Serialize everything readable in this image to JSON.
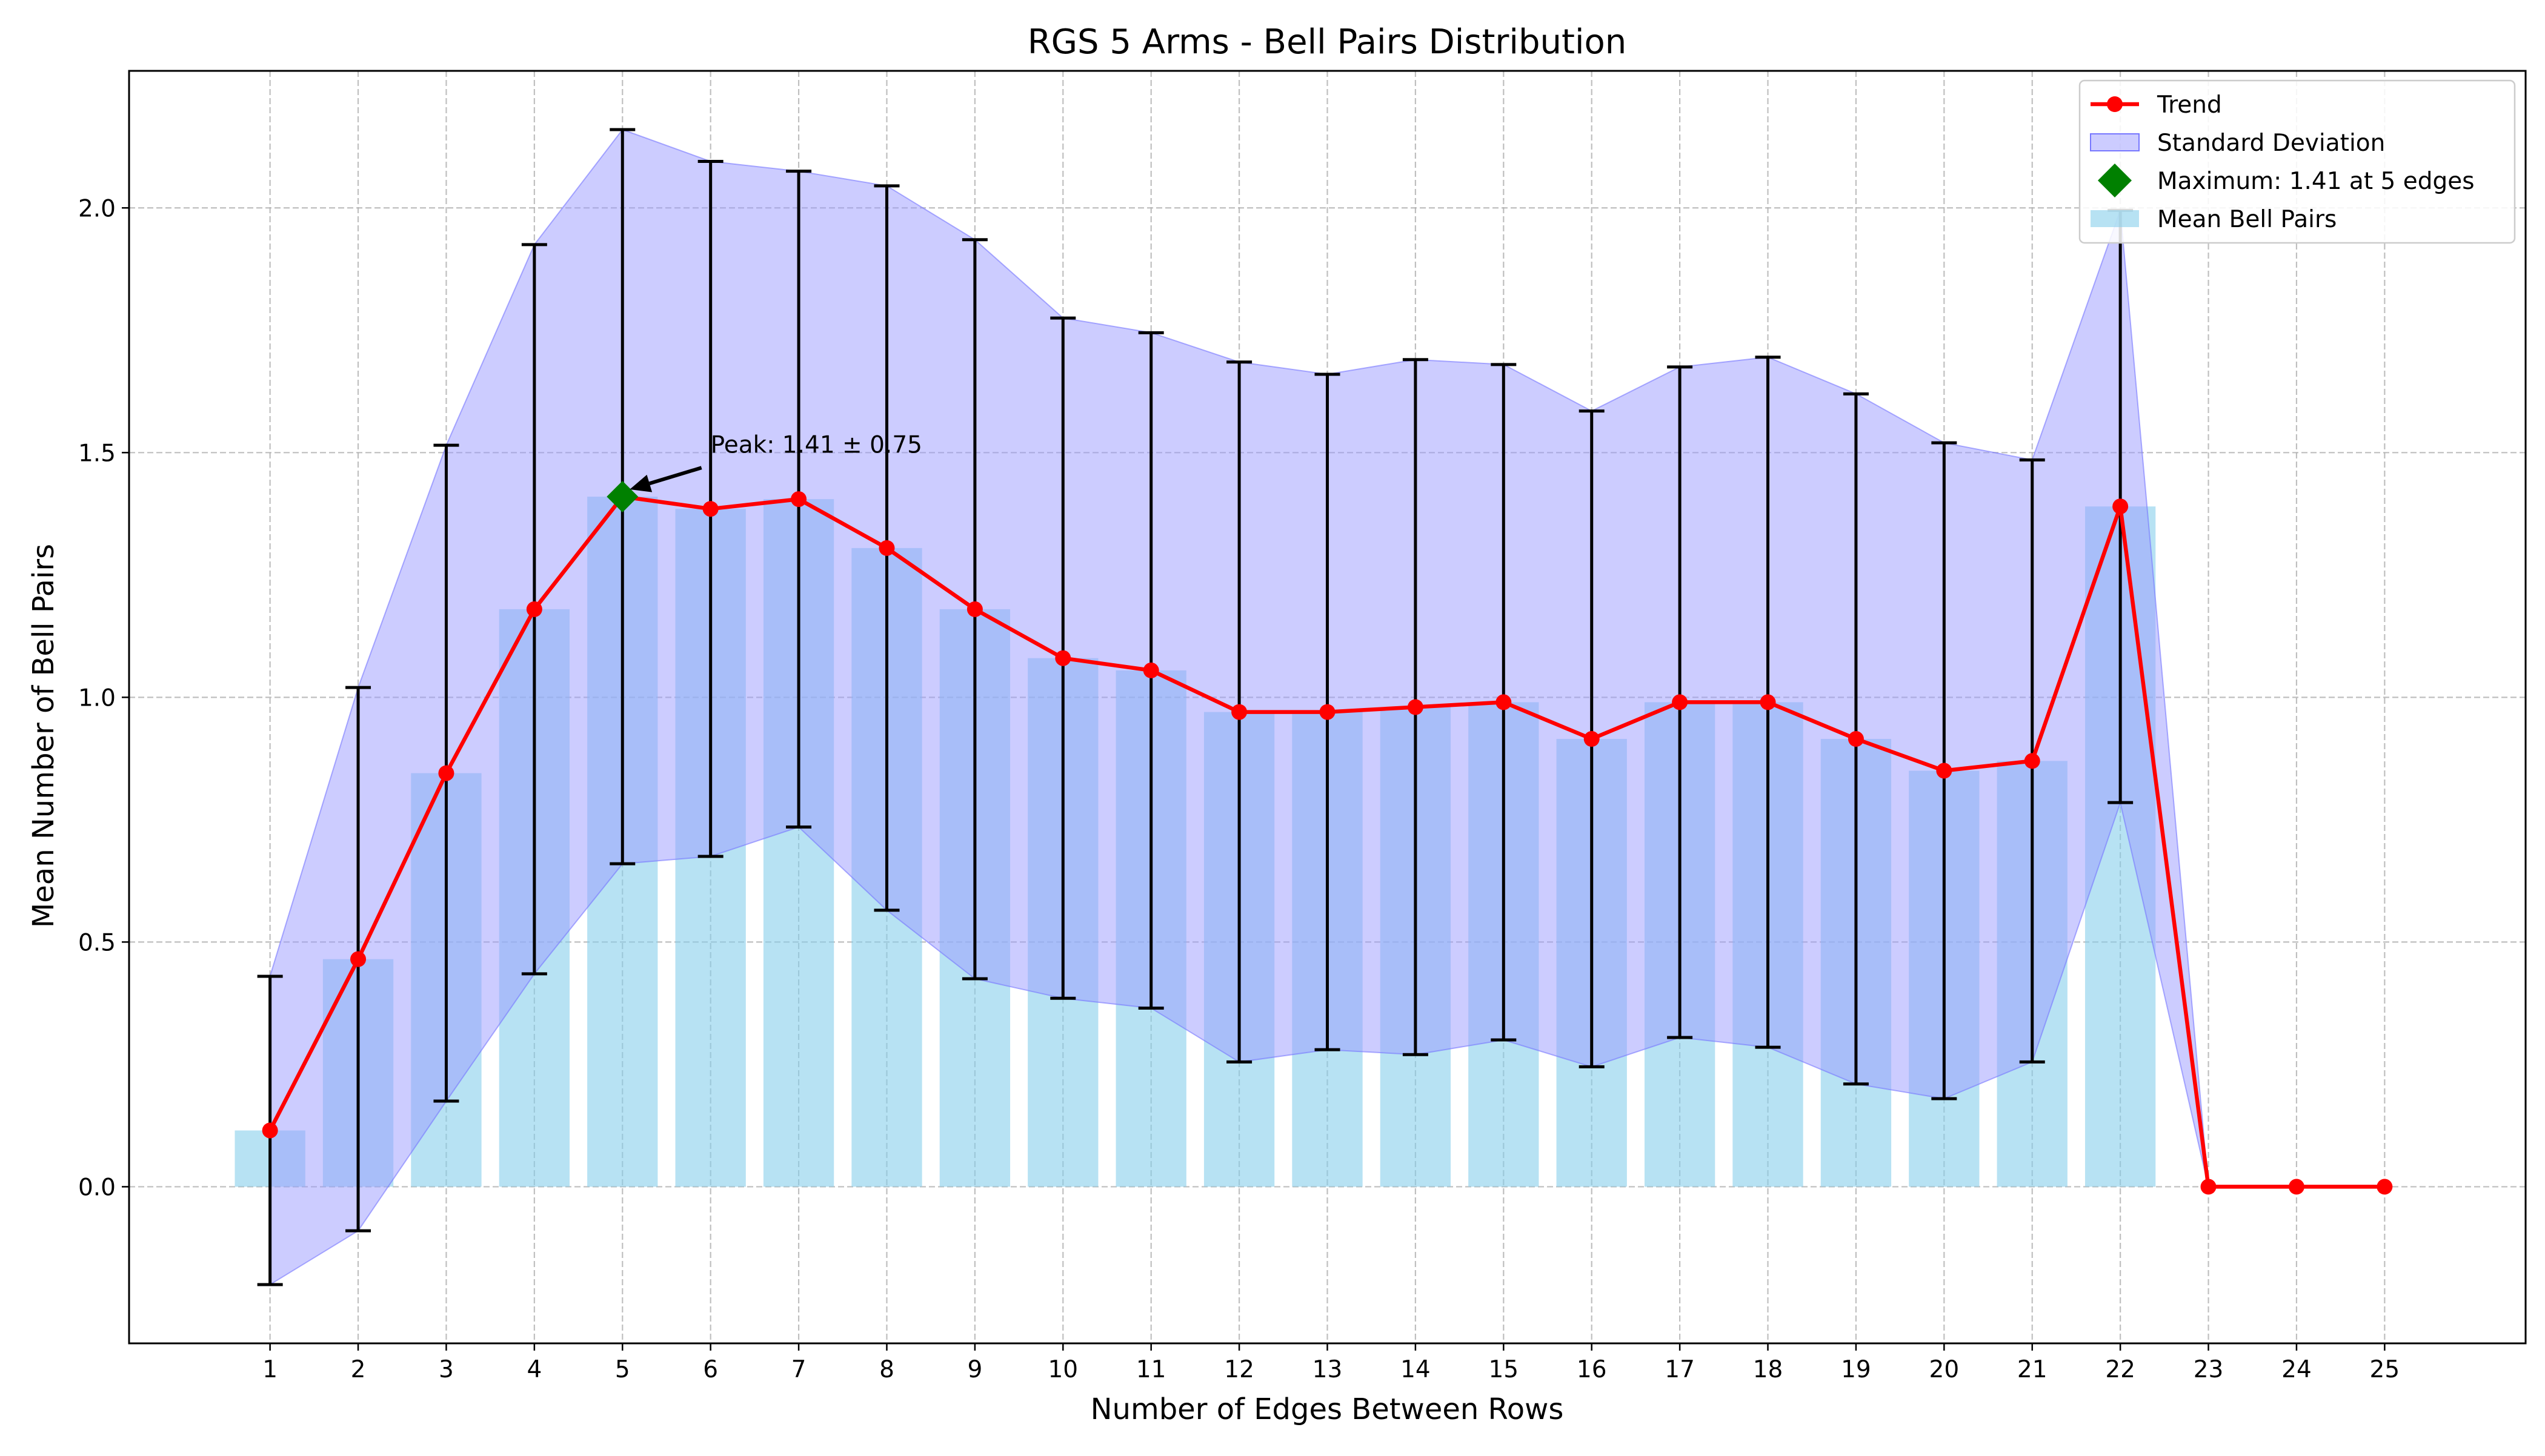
{
  "chart_data": {
    "type": "bar",
    "title": "RGS 5 Arms - Bell Pairs Distribution",
    "xlabel": "Number of Edges Between Rows",
    "ylabel": "Mean Number of Bell Pairs",
    "xlim": [
      -0.6,
      26.6
    ],
    "ylim": [
      -0.32,
      2.28
    ],
    "grid": true,
    "legend_position": "top-right",
    "x": [
      1,
      2,
      3,
      4,
      5,
      6,
      7,
      8,
      9,
      10,
      11,
      12,
      13,
      14,
      15,
      16,
      17,
      18,
      19,
      20,
      21,
      22,
      23,
      24,
      25
    ],
    "x_tick_labels": [
      "1",
      "2",
      "3",
      "4",
      "5",
      "6",
      "7",
      "8",
      "9",
      "10",
      "11",
      "12",
      "13",
      "14",
      "15",
      "16",
      "17",
      "18",
      "19",
      "20",
      "21",
      "22",
      "23",
      "24",
      "25"
    ],
    "y_ticks": [
      0.0,
      0.5,
      1.0,
      1.5,
      2.0
    ],
    "y_tick_labels": [
      "0.0",
      "0.5",
      "1.0",
      "1.5",
      "2.0"
    ],
    "series": [
      {
        "name": "Mean Bell Pairs",
        "type": "bar",
        "color": "#87ceeb",
        "values": [
          0.115,
          0.465,
          0.845,
          1.18,
          1.41,
          1.385,
          1.405,
          1.305,
          1.18,
          1.08,
          1.055,
          0.97,
          0.97,
          0.98,
          0.99,
          0.915,
          0.99,
          0.99,
          0.915,
          0.85,
          0.87,
          1.39,
          0.0,
          0.0,
          0.0
        ]
      },
      {
        "name": "Trend",
        "type": "line",
        "color": "#ff0000",
        "values": [
          0.115,
          0.465,
          0.845,
          1.18,
          1.41,
          1.385,
          1.405,
          1.305,
          1.18,
          1.08,
          1.055,
          0.97,
          0.97,
          0.98,
          0.99,
          0.915,
          0.99,
          0.99,
          0.915,
          0.85,
          0.87,
          1.39,
          0.0,
          0.0,
          0.0
        ]
      },
      {
        "name": "Standard Deviation",
        "type": "band",
        "color": "#9999ff",
        "std": [
          0.315,
          0.555,
          0.67,
          0.745,
          0.75,
          0.71,
          0.67,
          0.74,
          0.755,
          0.695,
          0.69,
          0.715,
          0.69,
          0.71,
          0.69,
          0.67,
          0.685,
          0.705,
          0.705,
          0.67,
          0.615,
          0.605,
          0.0,
          0.0,
          0.0
        ]
      }
    ],
    "maximum": {
      "label": "Maximum: 1.41 at 5 edges",
      "x": 5,
      "y": 1.41,
      "color": "#008000"
    },
    "annotation": {
      "text": "Peak: 1.41 ± 0.75",
      "x": 5,
      "y": 1.41,
      "text_x": 6.0,
      "text_y": 1.5
    },
    "legend": [
      {
        "label": "Trend",
        "kind": "line-marker",
        "color": "#ff0000"
      },
      {
        "label": "Standard Deviation",
        "kind": "patch",
        "color": "#9999ff"
      },
      {
        "label": "Maximum: 1.41 at 5 edges",
        "kind": "diamond",
        "color": "#008000"
      },
      {
        "label": "Mean Bell Pairs",
        "kind": "patch",
        "color": "#87ceeb"
      }
    ]
  }
}
